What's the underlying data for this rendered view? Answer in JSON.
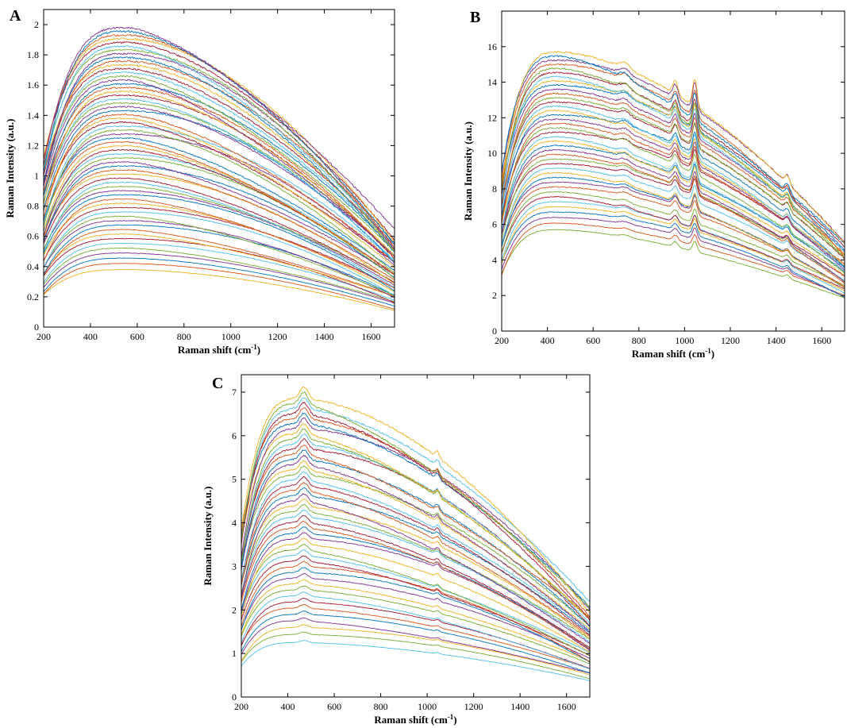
{
  "chart_data": [
    {
      "panel": "A",
      "type": "line",
      "xlabel": "Raman shift (cm",
      "xlabel_sup": "-1",
      "xlabel_end": ")",
      "ylabel": "Raman Intensity (a.u.)",
      "xlim": [
        200,
        1700
      ],
      "ylim": [
        0,
        2.1
      ],
      "xticks": [
        200,
        400,
        600,
        800,
        1000,
        1200,
        1400,
        1600
      ],
      "yticks": [
        0,
        0.2,
        0.4,
        0.6,
        0.8,
        1,
        1.2,
        1.4,
        1.6,
        1.8,
        2
      ],
      "grid": false,
      "legend": "none",
      "series_summary": {
        "count": 60,
        "peak_x": 560,
        "peak_min": 0.38,
        "peak_max": 1.98,
        "start_y_fraction_of_peak": 0.55,
        "end_y_fraction_of_peak": 0.3,
        "bands": [],
        "colors": [
          "#EDB120",
          "#D95319",
          "#0072BD",
          "#7E2F8E",
          "#77AC30",
          "#4DBEEE",
          "#A2142F"
        ]
      }
    },
    {
      "panel": "B",
      "type": "line",
      "xlabel": "Raman shift (cm",
      "xlabel_sup": "-1",
      "xlabel_end": ")",
      "ylabel": "Raman Intensity (a.u.)",
      "xlim": [
        200,
        1700
      ],
      "ylim": [
        0,
        18
      ],
      "xticks": [
        200,
        400,
        600,
        800,
        1000,
        1200,
        1400,
        1600
      ],
      "yticks": [
        0,
        2,
        4,
        6,
        8,
        10,
        12,
        14,
        16
      ],
      "grid": false,
      "legend": "none",
      "series_summary": {
        "count": 40,
        "peak_x": 450,
        "peak_min": 5.7,
        "peak_max": 15.7,
        "start_y_fraction_of_peak": 0.55,
        "end_y_fraction_of_peak": 0.3,
        "bands": [
          {
            "x": 1045,
            "rel_height": 0.1,
            "width": 14
          },
          {
            "x": 960,
            "rel_height": 0.05,
            "width": 16
          },
          {
            "x": 1450,
            "rel_height": 0.03,
            "width": 15
          },
          {
            "x": 740,
            "rel_height": 0.02,
            "width": 30
          }
        ],
        "colors": [
          "#77AC30",
          "#D95319",
          "#7E2F8E",
          "#0072BD",
          "#EDB120",
          "#4DBEEE",
          "#A2142F"
        ]
      }
    },
    {
      "panel": "C",
      "type": "line",
      "xlabel": "Raman shift (cm",
      "xlabel_sup": "-1",
      "xlabel_end": ")",
      "ylabel": "Raman Intensity (a.u.)",
      "xlim": [
        200,
        1700
      ],
      "ylim": [
        0,
        7.4
      ],
      "xticks": [
        200,
        400,
        600,
        800,
        1000,
        1200,
        1400,
        1600
      ],
      "yticks": [
        0,
        1,
        2,
        3,
        4,
        5,
        6,
        7
      ],
      "grid": false,
      "legend": "none",
      "series_summary": {
        "count": 45,
        "peak_x": 450,
        "peak_min": 1.25,
        "peak_max": 6.85,
        "start_y_fraction_of_peak": 0.55,
        "end_y_fraction_of_peak": 0.3,
        "bands": [
          {
            "x": 470,
            "rel_height": 0.04,
            "width": 25
          },
          {
            "x": 1045,
            "rel_height": 0.02,
            "width": 12
          }
        ],
        "colors": [
          "#4DBEEE",
          "#77AC30",
          "#EDB120",
          "#7E2F8E",
          "#0072BD",
          "#D95319",
          "#A2142F"
        ]
      }
    }
  ]
}
